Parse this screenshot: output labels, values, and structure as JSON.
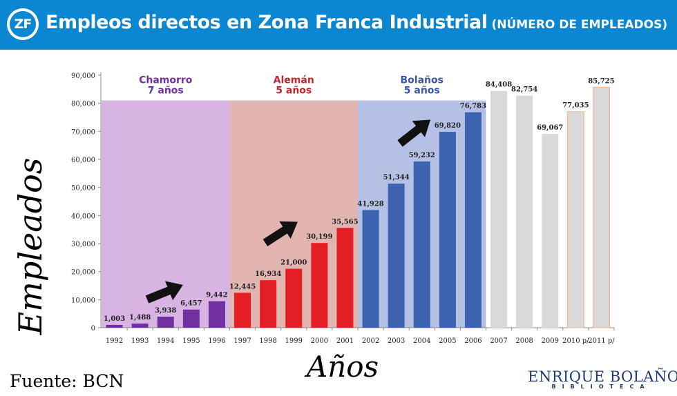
{
  "header": {
    "logo_text": "ZF",
    "title": "Empleos directos en Zona Franca Industrial",
    "subtitle": "(NÚMERO DE EMPLEADOS)",
    "bg_color": "#0b86d0"
  },
  "chart_data": {
    "type": "bar",
    "xlabel": "Años",
    "ylabel": "Empleados",
    "ylim": [
      0,
      90000
    ],
    "yticks": [
      "0",
      "10,000",
      "20,000",
      "30,000",
      "40,000",
      "50,000",
      "60,000",
      "70,000",
      "80,000",
      "90,000"
    ],
    "categories": [
      "1992",
      "1993",
      "1994",
      "1995",
      "1996",
      "1997",
      "1998",
      "1999",
      "2000",
      "2001",
      "2002",
      "2003",
      "2004",
      "2005",
      "2006",
      "2007",
      "2008",
      "2009",
      "2010 p/",
      "2011 p/"
    ],
    "values": [
      1003,
      1488,
      3938,
      6457,
      9442,
      12445,
      16934,
      21000,
      30199,
      35565,
      41928,
      51344,
      59232,
      69820,
      76783,
      84408,
      82754,
      69067,
      77035,
      85725
    ],
    "value_labels": [
      "1,003",
      "1,488",
      "3,938",
      "6,457",
      "9,442",
      "12,445",
      "16,934",
      "21,000",
      "30,199",
      "35,565",
      "41,928",
      "51,344",
      "59,232",
      "69,820",
      "76,783",
      "84,408",
      "82,754",
      "69,067",
      "77,035",
      "85,725"
    ],
    "periods": [
      {
        "name": "Chamorro",
        "years": "7 años",
        "start": 0,
        "end": 4,
        "bar_color": "#7030a0",
        "band_color": "#d8b4e2",
        "label_color": "#7030a0"
      },
      {
        "name": "Alemán",
        "years": "5 años",
        "start": 5,
        "end": 9,
        "bar_color": "#e31e24",
        "band_color": "#e2b5b1",
        "label_color": "#c0282d"
      },
      {
        "name": "Bolaños",
        "years": "5 años",
        "start": 10,
        "end": 14,
        "bar_color": "#3d63b0",
        "band_color": "#b4c0e4",
        "label_color": "#3a57a5"
      }
    ],
    "other_bar_color": "#d9d9d9",
    "projected_edge_color": "#f4b183",
    "band_top_value": 81000
  },
  "footer": {
    "source": "Fuente: BCN",
    "brand_name": "ENRIQUE BOLAÑOS",
    "brand_sub": "BIBLIOTECA"
  }
}
